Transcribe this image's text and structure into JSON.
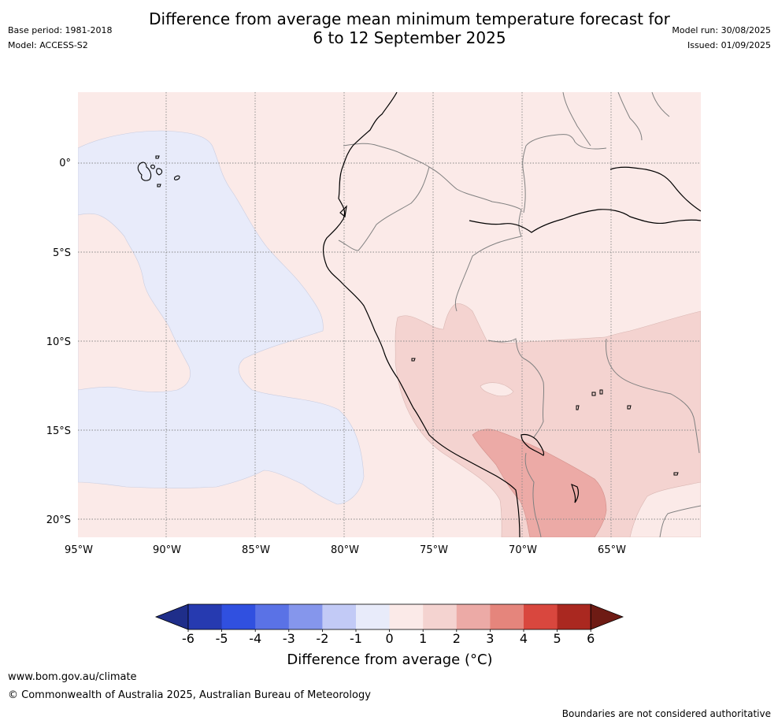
{
  "header": {
    "title_line1": "Difference from average mean minimum temperature forecast for",
    "title_line2": "6 to 12 September 2025",
    "base_period": "Base period: 1981-2018",
    "model": "Model: ACCESS-S2",
    "model_run": "Model run: 30/08/2025",
    "issued": "Issued: 01/09/2025"
  },
  "map": {
    "longitude_labels": [
      "95°W",
      "90°W",
      "85°W",
      "80°W",
      "75°W",
      "70°W",
      "65°W"
    ],
    "latitude_labels": [
      "0°",
      "5°S",
      "10°S",
      "15°S",
      "20°S"
    ],
    "colors": {
      "anomaly_neg_1_0": "#e8ebfa",
      "anomaly_0_1": "#fbeae8",
      "anomaly_1_2": "#f4d3d0",
      "anomaly_2_3": "#ecaaa6",
      "coast": "#000000",
      "borders": "#808080",
      "graticule": "#888888"
    }
  },
  "colorbar": {
    "tick_labels": [
      "-6",
      "-5",
      "-4",
      "-3",
      "-2",
      "-1",
      "0",
      "1",
      "2",
      "3",
      "4",
      "5",
      "6"
    ],
    "colors": [
      "#1f2e8a",
      "#263ab0",
      "#3050e0",
      "#5a72e6",
      "#8596ec",
      "#c2caf6",
      "#e8ebfa",
      "#fbeae8",
      "#f4d3d0",
      "#ecaaa6",
      "#e5857c",
      "#d9473e",
      "#aa2820",
      "#6e1b14"
    ],
    "title": "Difference from average (°C)"
  },
  "footer": {
    "url": "www.bom.gov.au/climate",
    "copyright": "© Commonwealth of Australia 2025, Australian Bureau of Meteorology",
    "disclaimer": "Boundaries are not considered authoritative"
  }
}
